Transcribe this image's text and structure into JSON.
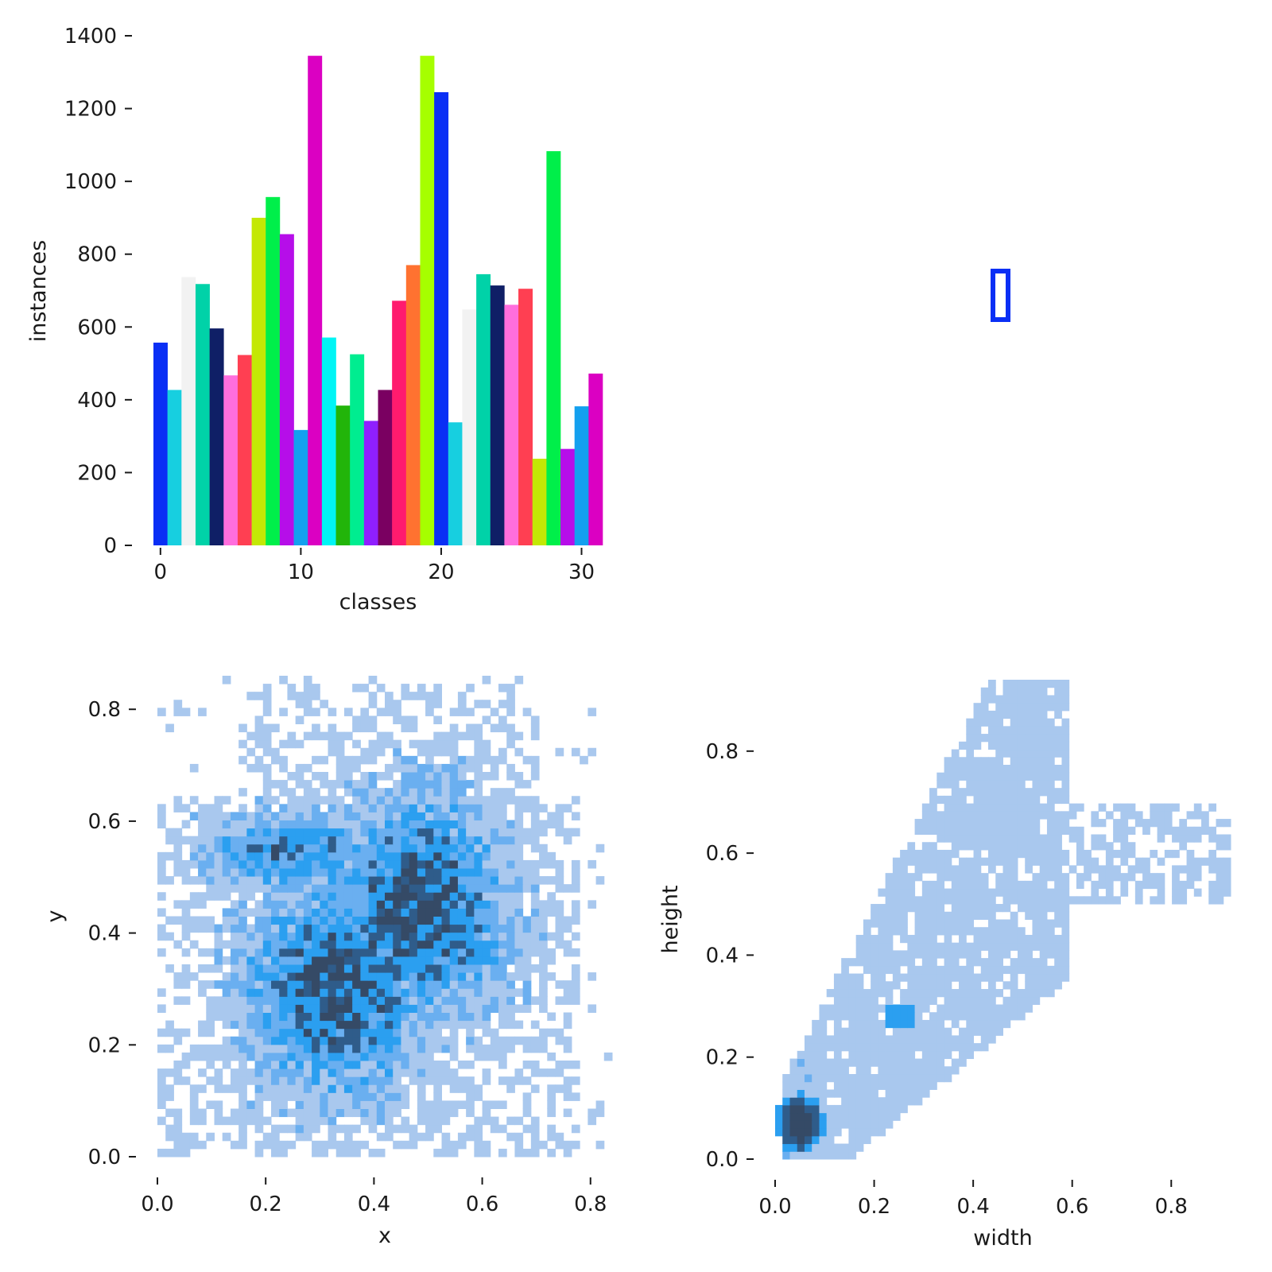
{
  "chart_data": [
    {
      "type": "bar",
      "xlabel": "classes",
      "ylabel": "instances",
      "xticks": [
        0,
        10,
        20,
        30
      ],
      "yticks": [
        0,
        200,
        400,
        600,
        800,
        1000,
        1200,
        1400
      ],
      "ylim": [
        0,
        1400
      ],
      "categories": [
        0,
        1,
        2,
        3,
        4,
        5,
        6,
        7,
        8,
        9,
        10,
        11,
        12,
        13,
        14,
        15,
        16,
        17,
        18,
        19,
        20,
        21,
        22,
        23,
        24,
        25,
        26,
        27,
        28,
        29,
        30,
        31
      ],
      "values": [
        557,
        427,
        737,
        718,
        596,
        467,
        523,
        900,
        957,
        855,
        317,
        1345,
        571,
        384,
        525,
        342,
        427,
        672,
        770,
        1345,
        1245,
        338,
        648,
        745,
        714,
        661,
        705,
        238,
        1083,
        265,
        382,
        472
      ],
      "colors": [
        "#0a2ff5",
        "#17cfe0",
        "#f2f2f2",
        "#00d2a8",
        "#0f1f66",
        "#ff6edd",
        "#ff3f52",
        "#c3e805",
        "#00ef4a",
        "#b60ee9",
        "#13a0ef",
        "#db00c2",
        "#00f5f5",
        "#22b50a",
        "#00ed90",
        "#8f1fff",
        "#7a0061",
        "#ff1b6e",
        "#ff7230",
        "#a6ff00",
        "#0a2ff5",
        "#17cfe0",
        "#f2f2f2",
        "#00d2a8",
        "#0f1f66",
        "#ff6edd",
        "#ff3f52",
        "#c3e805",
        "#00ef4a",
        "#b60ee9",
        "#13a0ef",
        "#db00c2"
      ]
    },
    {
      "type": "scatter",
      "description_marker": "box",
      "shape": "rectangle",
      "color": "#0a2ff5"
    },
    {
      "type": "heatmap",
      "xlabel": "x",
      "ylabel": "y",
      "xticks": [
        0.0,
        0.2,
        0.4,
        0.6,
        0.8
      ],
      "yticks": [
        0.0,
        0.2,
        0.4,
        0.6,
        0.8
      ],
      "xlim": [
        0.0,
        0.84
      ],
      "ylim": [
        0.0,
        0.86
      ],
      "colors": [
        "#a9c8ee",
        "#6aaff0",
        "#2b9ff0",
        "#2f5c8a",
        "#354a66"
      ]
    },
    {
      "type": "heatmap",
      "xlabel": "width",
      "ylabel": "height",
      "xticks": [
        0.0,
        0.2,
        0.4,
        0.6,
        0.8
      ],
      "yticks": [
        0.0,
        0.2,
        0.4,
        0.6,
        0.8
      ],
      "xlim": [
        0.0,
        0.92
      ],
      "ylim": [
        0.0,
        0.94
      ],
      "colors": [
        "#a9c8ee",
        "#6aaff0",
        "#2b9ff0",
        "#2f5c8a",
        "#354a66"
      ]
    }
  ]
}
